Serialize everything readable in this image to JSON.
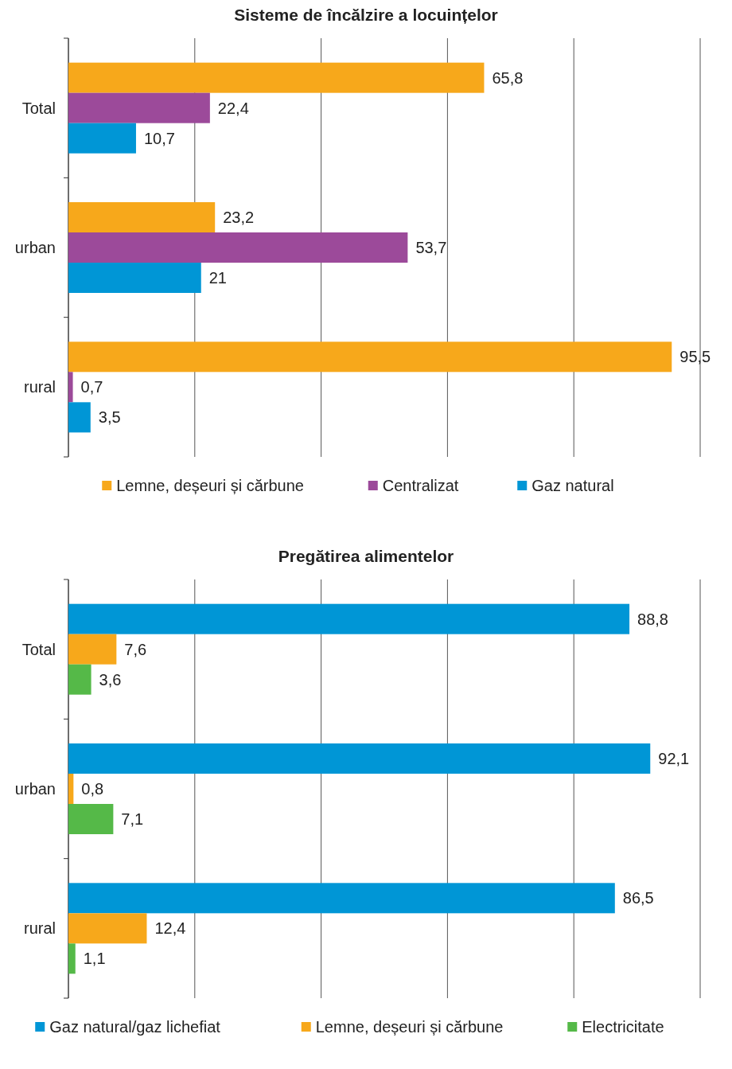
{
  "chart_data": [
    {
      "type": "bar",
      "orientation": "horizontal",
      "title": "Sisteme de încălzire a locuințelor",
      "categories": [
        "Total",
        "urban",
        "rural"
      ],
      "series": [
        {
          "name": "Lemne, deșeuri și cărbune",
          "color": "#f7a81b",
          "values": [
            65.8,
            23.2,
            95.5
          ],
          "value_labels": [
            "65,8",
            "23,2",
            "95,5"
          ]
        },
        {
          "name": "Centralizat",
          "color": "#9c4a9a",
          "values": [
            22.4,
            53.7,
            0.7
          ],
          "value_labels": [
            "22,4",
            "53,7",
            "0,7"
          ]
        },
        {
          "name": "Gaz natural",
          "color": "#0096d6",
          "values": [
            10.7,
            21,
            3.5
          ],
          "value_labels": [
            "10,7",
            "21",
            "3,5"
          ]
        }
      ],
      "xlim": [
        0,
        100
      ],
      "xticks": [
        {
          "value": 0,
          "label": null
        },
        {
          "value": 20,
          "label": null
        },
        {
          "value": 40,
          "label": null
        },
        {
          "value": 60,
          "label": null
        },
        {
          "value": 80,
          "label": null
        },
        {
          "value": 100,
          "label": null
        }
      ],
      "grid": "x",
      "tick_labels": "y",
      "legend": "bottom"
    },
    {
      "type": "bar",
      "orientation": "horizontal",
      "title": "Pregătirea alimentelor",
      "categories": [
        "Total",
        "urban",
        "rural"
      ],
      "series": [
        {
          "name": "Gaz natural/gaz lichefiat",
          "color": "#0096d6",
          "values": [
            88.8,
            92.1,
            86.5
          ],
          "value_labels": [
            "88,8",
            "92,1",
            "86,5"
          ]
        },
        {
          "name": "Lemne, deșeuri și cărbune",
          "color": "#f7a81b",
          "values": [
            7.6,
            0.8,
            12.4
          ],
          "value_labels": [
            "7,6",
            "0,8",
            "12,4"
          ]
        },
        {
          "name": "Electricitate",
          "color": "#55b948",
          "values": [
            3.6,
            7.1,
            1.1
          ],
          "value_labels": [
            "3,6",
            "7,1",
            "1,1"
          ]
        }
      ],
      "xlim": [
        0,
        100
      ],
      "xticks": [
        {
          "value": 0,
          "label": null
        },
        {
          "value": 20,
          "label": null
        },
        {
          "value": 40,
          "label": null
        },
        {
          "value": 60,
          "label": null
        },
        {
          "value": 80,
          "label": null
        },
        {
          "value": 100,
          "label": null
        }
      ],
      "grid": "x",
      "tick_labels": "y",
      "legend": "bottom"
    }
  ]
}
